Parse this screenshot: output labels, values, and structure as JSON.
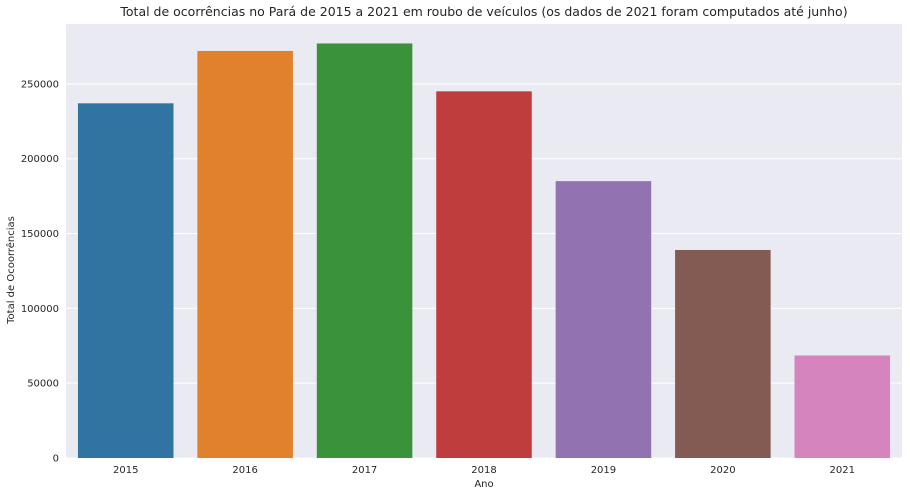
{
  "chart_data": {
    "type": "bar",
    "title": "Total de ocorrências no Pará de 2015 a 2021 em roubo de veículos (os dados de 2021 foram computados até junho)",
    "xlabel": "Ano",
    "ylabel": "Total de Ocoorrências",
    "categories": [
      "2015",
      "2016",
      "2017",
      "2018",
      "2019",
      "2020",
      "2021"
    ],
    "values": [
      237000,
      272000,
      277000,
      245000,
      185000,
      139000,
      68500
    ],
    "ylim": [
      0,
      290000
    ],
    "yticks": [
      0,
      50000,
      100000,
      150000,
      200000,
      250000
    ],
    "ytick_labels": [
      "0",
      "50000",
      "100000",
      "150000",
      "200000",
      "250000"
    ],
    "grid": true,
    "colors": [
      "#3274a1",
      "#e1812c",
      "#3a923a",
      "#c03d3e",
      "#9372b2",
      "#845b53",
      "#d684bd"
    ],
    "background": "#eaeaf2"
  }
}
